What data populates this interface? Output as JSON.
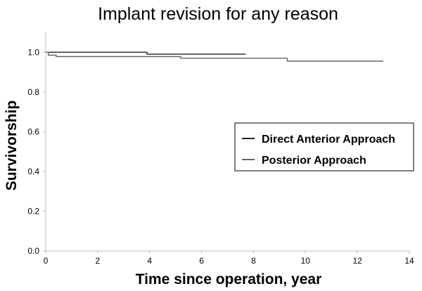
{
  "chart_data": {
    "type": "line",
    "title": "Implant revision for any reason",
    "xlabel": "Time since operation, year",
    "ylabel": "Survivorship",
    "xlim": [
      0,
      14
    ],
    "ylim": [
      0,
      1.1
    ],
    "x_ticks": [
      "0",
      "2",
      "4",
      "6",
      "8",
      "10",
      "12",
      "14"
    ],
    "y_ticks": [
      "0.0",
      "0.2",
      "0.4",
      "0.6",
      "0.8",
      "1.0"
    ],
    "grid": false,
    "legend_position": "right",
    "step": true,
    "series": [
      {
        "name": "Direct Anterior Approach",
        "color": "#222222",
        "x": [
          0,
          3.9,
          3.9,
          7.7
        ],
        "y": [
          1.0,
          1.0,
          0.99,
          0.99
        ]
      },
      {
        "name": "Posterior Approach",
        "color": "#666666",
        "x": [
          0,
          0.1,
          0.1,
          0.4,
          0.4,
          5.2,
          5.2,
          9.3,
          9.3,
          13.0
        ],
        "y": [
          1.0,
          1.0,
          0.985,
          0.985,
          0.978,
          0.978,
          0.97,
          0.97,
          0.955,
          0.955
        ]
      }
    ]
  }
}
